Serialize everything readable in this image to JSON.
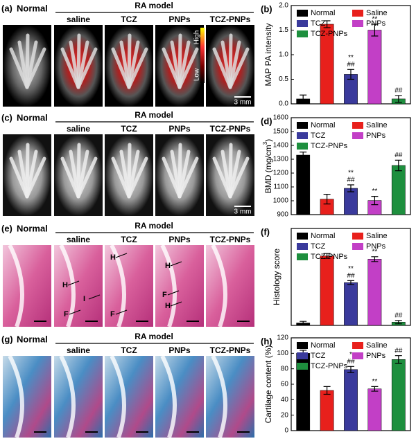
{
  "figure": {
    "panels": [
      {
        "label": "(a)",
        "title": "Normal",
        "group_title": "RA model",
        "groups": [
          "saline",
          "TCZ",
          "PNPs",
          "TCZ-PNPs"
        ],
        "scale_bar": "3 mm",
        "colorbar": [
          "High",
          "Low"
        ]
      },
      {
        "label": "(c)",
        "title": "Normal",
        "group_title": "RA model",
        "groups": [
          "saline",
          "TCZ",
          "PNPs",
          "TCZ-PNPs"
        ],
        "scale_bar": "3 mm"
      },
      {
        "label": "(e)",
        "title": "Normal",
        "group_title": "RA model",
        "groups": [
          "saline",
          "TCZ",
          "PNPs",
          "TCZ-PNPs"
        ],
        "annotations": [
          [
            "H",
            "I",
            "F"
          ],
          [
            "H",
            "F"
          ],
          [
            "H",
            "F",
            "H"
          ]
        ]
      },
      {
        "label": "(g)",
        "title": "Normal",
        "group_title": "RA model",
        "groups": [
          "saline",
          "TCZ",
          "PNPs",
          "TCZ-PNPs"
        ]
      }
    ]
  },
  "chart_data": [
    {
      "type": "bar",
      "label": "(b)",
      "ylabel": "MAP PA intensity",
      "categories": [
        "Normal",
        "Saline",
        "TCZ",
        "PNPs",
        "TCZ-PNPs"
      ],
      "colors": [
        "#000000",
        "#e8201c",
        "#3a3a9c",
        "#c23fc6",
        "#1e8f3e"
      ],
      "values": [
        0.1,
        1.62,
        0.6,
        1.5,
        0.1
      ],
      "errors": [
        0.08,
        0.07,
        0.1,
        0.12,
        0.07
      ],
      "annotations": [
        [],
        [],
        [
          "**",
          "##"
        ],
        [
          "**"
        ],
        [
          "##"
        ]
      ],
      "ylim": [
        0,
        2.0
      ],
      "yticks": [
        {
          "value": 0,
          "label": "0.0"
        },
        {
          "value": 0.5,
          "label": "0.5"
        },
        {
          "value": 1,
          "label": "1.0"
        },
        {
          "value": 1.5,
          "label": "1.5"
        },
        {
          "value": 2,
          "label": "2.0"
        }
      ]
    },
    {
      "type": "bar",
      "label": "(d)",
      "ylabel": "BMD (mg/cm",
      "ylabel_sup": "3",
      "ylabel_end": ")",
      "categories": [
        "Normal",
        "Saline",
        "TCZ",
        "PNPs",
        "TCZ-PNPs"
      ],
      "colors": [
        "#000000",
        "#e8201c",
        "#3a3a9c",
        "#c23fc6",
        "#1e8f3e"
      ],
      "values": [
        1330,
        1012,
        1090,
        1002,
        1255
      ],
      "errors": [
        22,
        35,
        25,
        30,
        38
      ],
      "annotations": [
        [],
        [],
        [
          "**",
          "##"
        ],
        [
          "**"
        ],
        [
          "##"
        ]
      ],
      "ylim": [
        900,
        1600
      ],
      "yticks": [
        900,
        1000,
        1100,
        1200,
        1300,
        1400,
        1500,
        1600
      ]
    },
    {
      "type": "bar",
      "label": "(f)",
      "ylabel": "Histology score",
      "categories": [
        "Normal",
        "Saline",
        "TCZ",
        "PNPs",
        "TCZ-PNPs"
      ],
      "colors": [
        "#000000",
        "#e8201c",
        "#3a3a9c",
        "#c23fc6",
        "#1e8f3e"
      ],
      "values": [
        0.15,
        4.3,
        2.65,
        4.1,
        0.2
      ],
      "errors": [
        0.1,
        0.15,
        0.12,
        0.15,
        0.1
      ],
      "annotations": [
        [],
        [],
        [
          "**",
          "##"
        ],
        [
          "**"
        ],
        [
          "##"
        ]
      ],
      "ylim": [
        0,
        6
      ]
    },
    {
      "type": "bar",
      "label": "(h)",
      "ylabel": "Cartilage content (%)",
      "categories": [
        "Normal",
        "Saline",
        "TCZ",
        "PNPs",
        "TCZ-PNPs"
      ],
      "colors": [
        "#000000",
        "#e8201c",
        "#3a3a9c",
        "#c23fc6",
        "#1e8f3e"
      ],
      "values": [
        100,
        52,
        79,
        54,
        92
      ],
      "errors": [
        4,
        5,
        4,
        3,
        5
      ],
      "annotations": [
        [],
        [],
        [
          "*",
          "##"
        ],
        [
          "**"
        ],
        [
          "##"
        ]
      ],
      "ylim": [
        0,
        120
      ],
      "yticks": [
        0,
        20,
        40,
        60,
        80,
        100,
        120
      ]
    }
  ]
}
